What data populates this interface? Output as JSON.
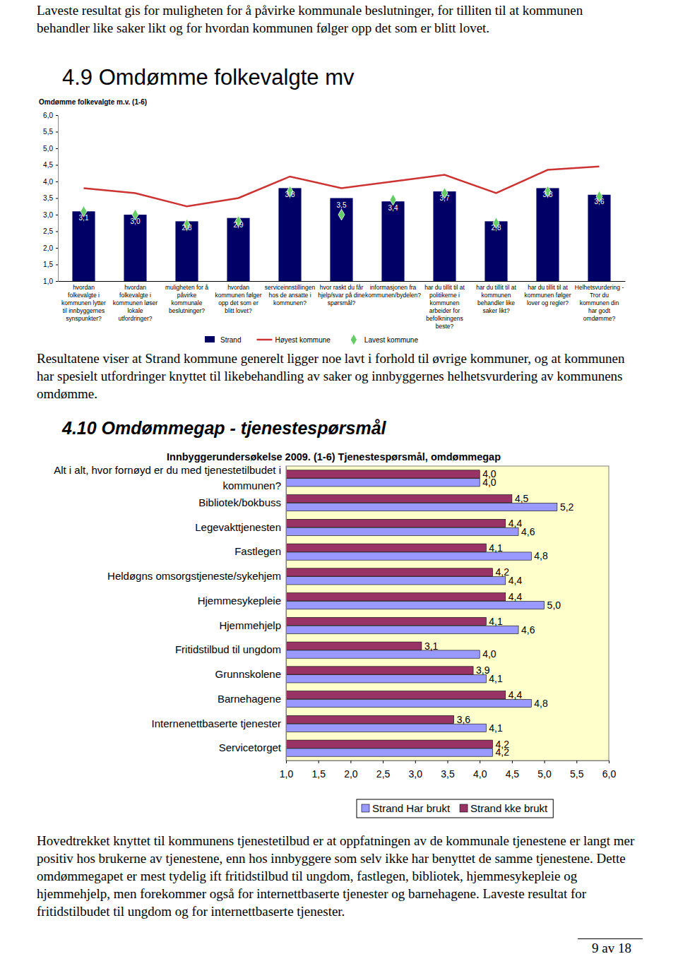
{
  "document": {
    "intro": "Laveste resultat gis for muligheten for å påvirke kommunale beslutninger, for tilliten til at kommunen behandler like saker likt og for hvordan kommunen følger opp det som er blitt lovet.",
    "heading_1": "4.9 Omdømme folkevalgte mv",
    "text_1": "Resultatene viser at Strand kommune generelt ligger noe lavt i forhold til øvrige kommuner, og at kommunen har spesielt utfordringer knyttet til likebehandling av saker og innbyggernes helhetsvurdering av kommunens omdømme.",
    "heading_2": "4.10 Omdømmegap - tjenestespørsmål",
    "text_2": "Hovedtrekket knyttet til kommunens tjenestetilbud er at oppfatningen av de kommunale tjenestene er langt mer positiv hos brukerne av tjenestene, enn hos innbyggere som selv ikke har benyttet de samme tjenestene. Dette omdømmegapet er mest tydelig ift fritidstilbud til ungdom, fastlegen, bibliotek, hjemmesykepleie og hjemmehjelp, men forekommer også for internettbaserte tjenester og barnehagene. Laveste resultat for fritidstilbudet til ungdom og for internettbaserte tjenester.",
    "page_number": "9 av 18"
  },
  "chart_data": [
    {
      "type": "bar",
      "title": "Omdømme folkevalgte m.v. (1-6)",
      "categories": [
        "hvordan folkevalgte i kommunen lytter til innbyggernes synspunkter?",
        "hvordan folkevalgte i kommunen løser lokale utfordringer?",
        "muligheten for å påvirke kommunale beslutninger?",
        "hvordan kommunen følger opp det som er blitt lovet?",
        "serviceinnstillingen hos de ansatte i kommunen?",
        "hvor raskt du får hjelp/svar på dine spørsmål?",
        "informasjonen fra kommunen/bydelen?",
        "har du tillit til at politikerne i kommunen arbeider for befolkningens beste?",
        "har du tillit til at kommunen behandler like saker likt?",
        "har du tillit til at kommunen følger lover og regler?",
        "Helhetsvurdering - Tror du kommunen din har godt omdømme?"
      ],
      "series": [
        {
          "name": "Strand",
          "type": "bar",
          "color": "#000066",
          "values": [
            3.1,
            3.0,
            2.8,
            2.9,
            3.8,
            3.5,
            3.4,
            3.7,
            2.8,
            3.8,
            3.6
          ],
          "value_labels": [
            "3,1",
            "3,0",
            "2,8",
            "2,9",
            "3,8",
            "3,5",
            "3,4",
            "3,7",
            "2,8",
            "3,8",
            "3,6"
          ]
        },
        {
          "name": "Høyest kommune",
          "type": "line",
          "color": "#cc3333",
          "values": [
            3.8,
            3.65,
            3.25,
            3.5,
            4.15,
            3.8,
            4.0,
            4.2,
            3.65,
            4.35,
            4.45
          ]
        },
        {
          "name": "Lavest kommune",
          "type": "scatter",
          "marker": "diamond",
          "color": "#66cc66",
          "values": [
            3.1,
            3.0,
            2.7,
            2.8,
            3.7,
            3.0,
            3.45,
            3.65,
            2.75,
            3.7,
            3.55
          ]
        }
      ],
      "ylim": [
        1,
        6
      ],
      "yticks": [
        {
          "value": 1,
          "label": "1,0"
        },
        {
          "value": 1.5,
          "label": "1,5"
        },
        {
          "value": 2,
          "label": "2,0"
        },
        {
          "value": 2.5,
          "label": "2,5"
        },
        {
          "value": 3,
          "label": "3,0"
        },
        {
          "value": 3.5,
          "label": "3,5"
        },
        {
          "value": 4,
          "label": "4,0"
        },
        {
          "value": 4.5,
          "label": "4,5"
        },
        {
          "value": 5,
          "label": "5,0"
        },
        {
          "value": 5.5,
          "label": "5,5"
        },
        {
          "value": 6,
          "label": "6,0"
        }
      ],
      "data_labels": true,
      "grid": false,
      "legend": "bottom"
    },
    {
      "type": "bar",
      "orientation": "horizontal",
      "title": "Innbyggerundersøkelse 2009. (1-6) Tjenestespørsmål, omdømmegap",
      "categories": [
        "Alt i alt, hvor fornøyd er du med tjenestetilbudet i kommunen?",
        "Bibliotek/bokbuss",
        "Legevakttjenesten",
        "Fastlegen",
        "Heldøgns omsorgstjeneste/sykehjem",
        "Hjemmesykepleie",
        "Hjemmehjelp",
        "Fritidstilbud til ungdom",
        "Grunnskolene",
        "Barnehagene",
        "Internenettbaserte tjenester",
        "Servicetorget"
      ],
      "series": [
        {
          "name": "Strand Har brukt",
          "color": "#9999ff",
          "values": [
            4.0,
            5.2,
            4.6,
            4.8,
            4.4,
            5.0,
            4.6,
            4.0,
            4.1,
            4.8,
            4.1,
            4.2
          ],
          "value_labels": [
            "4,0",
            "5,2",
            "4,6",
            "4,8",
            "4,4",
            "5,0",
            "4,6",
            "4,0",
            "4,1",
            "4,8",
            "4,1",
            "4,2"
          ]
        },
        {
          "name": "Strand kke brukt",
          "color": "#993366",
          "values": [
            4.0,
            4.5,
            4.4,
            4.1,
            4.2,
            4.4,
            4.1,
            3.1,
            3.9,
            4.4,
            3.6,
            4.2
          ],
          "value_labels": [
            "4,0",
            "4,5",
            "4,4",
            "4,1",
            "4,2",
            "4,4",
            "4,1",
            "3,1",
            "3,9",
            "4,4",
            "3,6",
            "4,2"
          ]
        }
      ],
      "xlim": [
        1,
        6
      ],
      "xticks": [
        {
          "value": 1,
          "label": "1,0"
        },
        {
          "value": 1.5,
          "label": "1,5"
        },
        {
          "value": 2,
          "label": "2,0"
        },
        {
          "value": 2.5,
          "label": "2,5"
        },
        {
          "value": 3,
          "label": "3,0"
        },
        {
          "value": 3.5,
          "label": "3,5"
        },
        {
          "value": 4,
          "label": "4,0"
        },
        {
          "value": 4.5,
          "label": "4,5"
        },
        {
          "value": 5,
          "label": "5,0"
        },
        {
          "value": 5.5,
          "label": "5,5"
        },
        {
          "value": 6,
          "label": "6,0"
        }
      ],
      "data_labels": true,
      "grid": false,
      "legend": "bottom"
    }
  ]
}
